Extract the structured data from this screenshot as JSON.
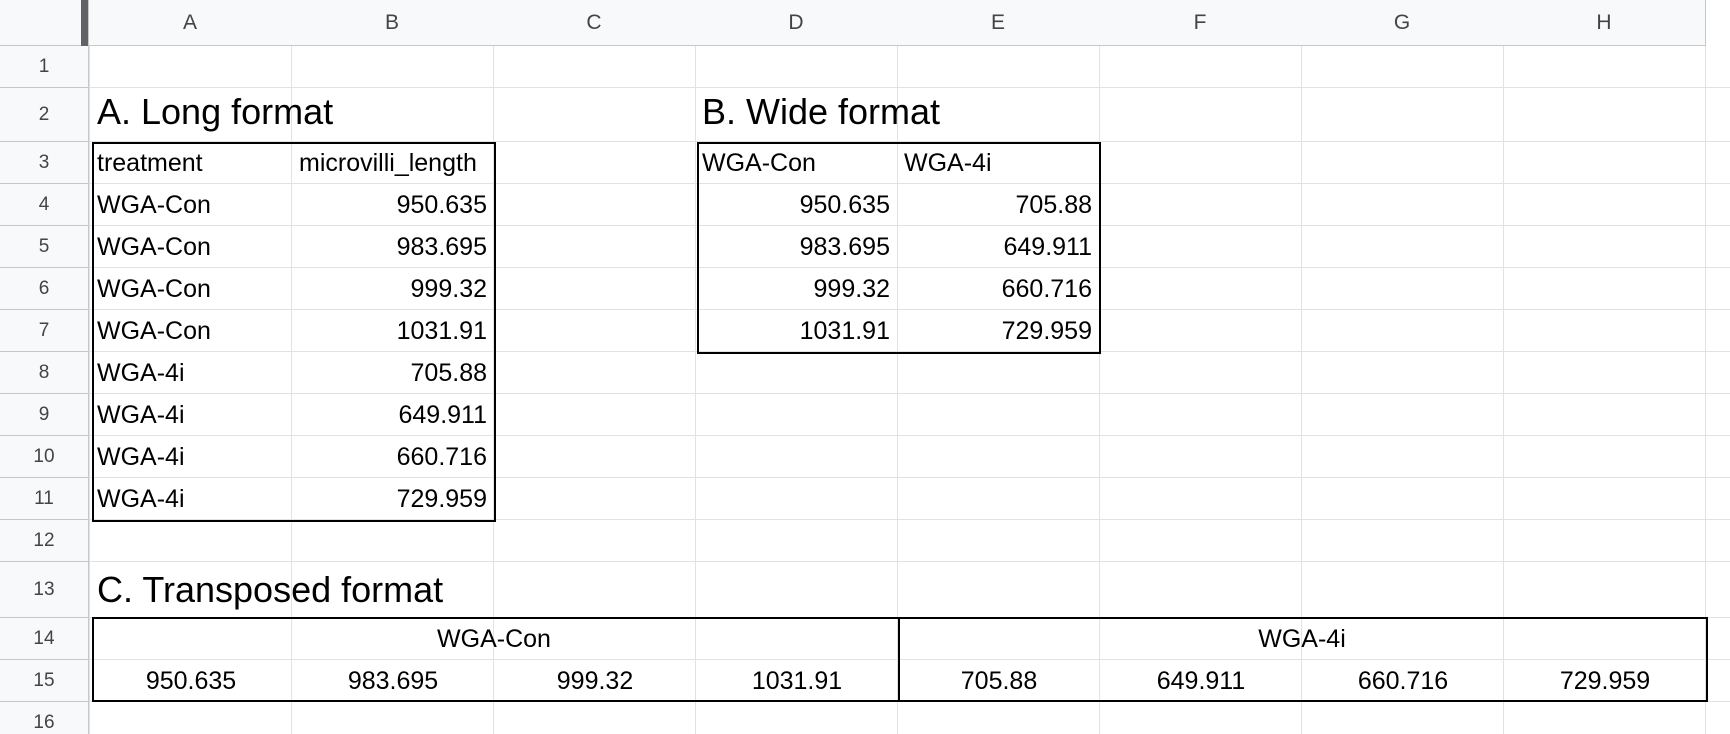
{
  "columns": [
    "A",
    "B",
    "C",
    "D",
    "E",
    "F",
    "G",
    "H"
  ],
  "rows": [
    "1",
    "2",
    "3",
    "4",
    "5",
    "6",
    "7",
    "8",
    "9",
    "10",
    "11",
    "12",
    "13",
    "14",
    "15",
    "16"
  ],
  "long": {
    "title": "A. Long format",
    "headers": [
      "treatment",
      "microvilli_length"
    ],
    "data": [
      [
        "WGA-Con",
        "950.635"
      ],
      [
        "WGA-Con",
        "983.695"
      ],
      [
        "WGA-Con",
        "999.32"
      ],
      [
        "WGA-Con",
        "1031.91"
      ],
      [
        "WGA-4i",
        "705.88"
      ],
      [
        "WGA-4i",
        "649.911"
      ],
      [
        "WGA-4i",
        "660.716"
      ],
      [
        "WGA-4i",
        "729.959"
      ]
    ]
  },
  "wide": {
    "title": "B. Wide format",
    "headers": [
      "WGA-Con",
      "WGA-4i"
    ],
    "data": [
      [
        "950.635",
        "705.88"
      ],
      [
        "983.695",
        "649.911"
      ],
      [
        "999.32",
        "660.716"
      ],
      [
        "1031.91",
        "729.959"
      ]
    ]
  },
  "transposed": {
    "title": "C. Transposed format",
    "headers": [
      "WGA-Con",
      "WGA-4i"
    ],
    "values": [
      "950.635",
      "983.695",
      "999.32",
      "1031.91",
      "705.88",
      "649.911",
      "660.716",
      "729.959"
    ]
  },
  "colors": {
    "header_bg": "#f8f9fa",
    "gridline": "#e2e2e2",
    "header_border": "#c7c7c7",
    "selection_bar": "#5f6368"
  }
}
